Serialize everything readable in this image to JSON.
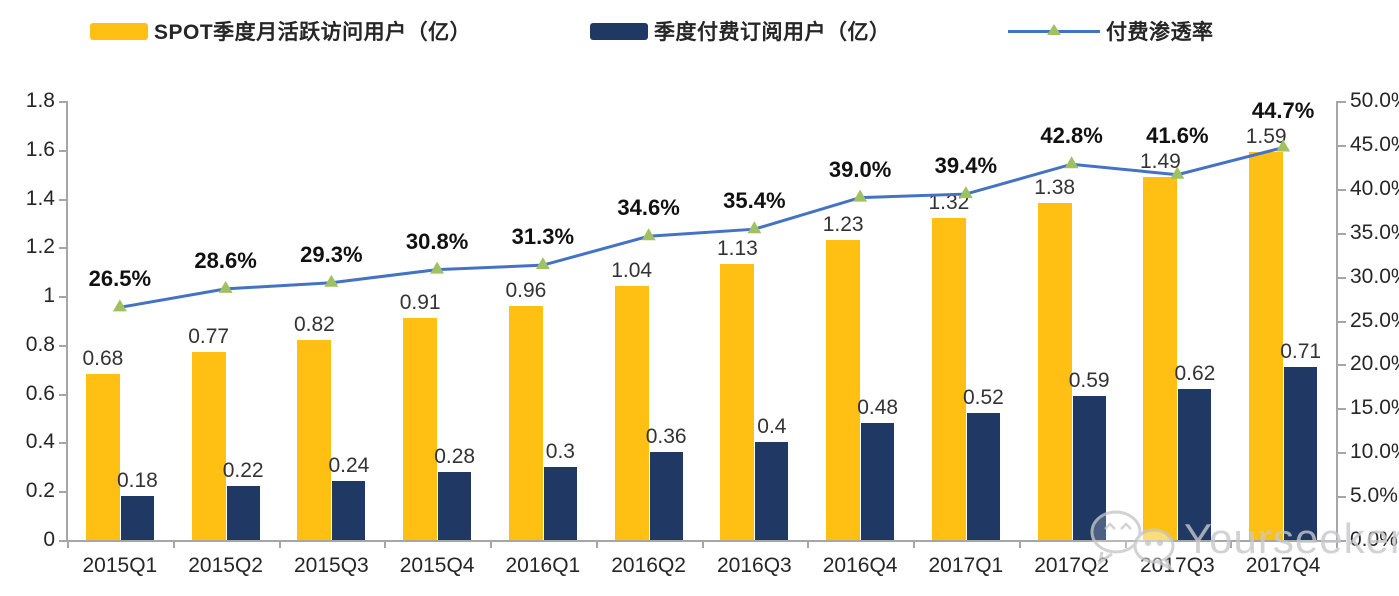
{
  "watermark": {
    "icon": "wechat-icon",
    "text": "Yourseeker"
  },
  "colors": {
    "mau_bar": "#FFC013",
    "subs_bar": "#1F3864",
    "line": "#4472C4",
    "marker": "#A0C064",
    "axis": "#A6A6A6",
    "label_text": "#333333",
    "pct_text": "#111111",
    "watermark_gray": "#C7C8CA"
  },
  "chart_data": {
    "type": "bar",
    "title": "",
    "xlabel": "",
    "ylabel": "",
    "legend_position": "top",
    "grid": false,
    "categories": [
      "2015Q1",
      "2015Q2",
      "2015Q3",
      "2015Q4",
      "2016Q1",
      "2016Q2",
      "2016Q3",
      "2016Q4",
      "2017Q1",
      "2017Q2",
      "2017Q3",
      "2017Q4"
    ],
    "series": [
      {
        "name": "SPOT季度月活跃访问用户（亿）",
        "type": "bar",
        "axis": "left",
        "color": "#FFC013",
        "values": [
          0.68,
          0.77,
          0.82,
          0.91,
          0.96,
          1.04,
          1.13,
          1.23,
          1.32,
          1.38,
          1.49,
          1.59
        ],
        "labels": [
          "0.68",
          "0.77",
          "0.82",
          "0.91",
          "0.96",
          "1.04",
          "1.13",
          "1.23",
          "1.32",
          "1.38",
          "1.49",
          "1.59"
        ]
      },
      {
        "name": "季度付费订阅用户（亿）",
        "type": "bar",
        "axis": "left",
        "color": "#1F3864",
        "values": [
          0.18,
          0.22,
          0.24,
          0.28,
          0.3,
          0.36,
          0.4,
          0.48,
          0.52,
          0.59,
          0.62,
          0.71
        ],
        "labels": [
          "0.18",
          "0.22",
          "0.24",
          "0.28",
          "0.3",
          "0.36",
          "0.4",
          "0.48",
          "0.52",
          "0.59",
          "0.62",
          "0.71"
        ]
      },
      {
        "name": "付费渗透率",
        "type": "line",
        "axis": "right",
        "color": "#4472C4",
        "marker": "triangle-up",
        "marker_color": "#A0C064",
        "values": [
          26.5,
          28.6,
          29.3,
          30.8,
          31.3,
          34.6,
          35.4,
          39.0,
          39.4,
          42.8,
          41.6,
          44.7
        ],
        "labels": [
          "26.5%",
          "28.6%",
          "29.3%",
          "30.8%",
          "31.3%",
          "34.6%",
          "35.4%",
          "39.0%",
          "39.4%",
          "42.8%",
          "41.6%",
          "44.7%"
        ]
      }
    ],
    "left_axis": {
      "min": 0,
      "max": 1.8,
      "step": 0.2,
      "ticks": [
        "1.8",
        "1.6",
        "1.4",
        "1.2",
        "1",
        "0.8",
        "0.6",
        "0.4",
        "0.2",
        "0"
      ]
    },
    "right_axis": {
      "min": 0,
      "max": 50,
      "step": 5,
      "ticks": [
        "50.0%",
        "45.0%",
        "40.0%",
        "35.0%",
        "30.0%",
        "25.0%",
        "20.0%",
        "15.0%",
        "10.0%",
        "5.0%",
        "0.0%"
      ]
    }
  }
}
